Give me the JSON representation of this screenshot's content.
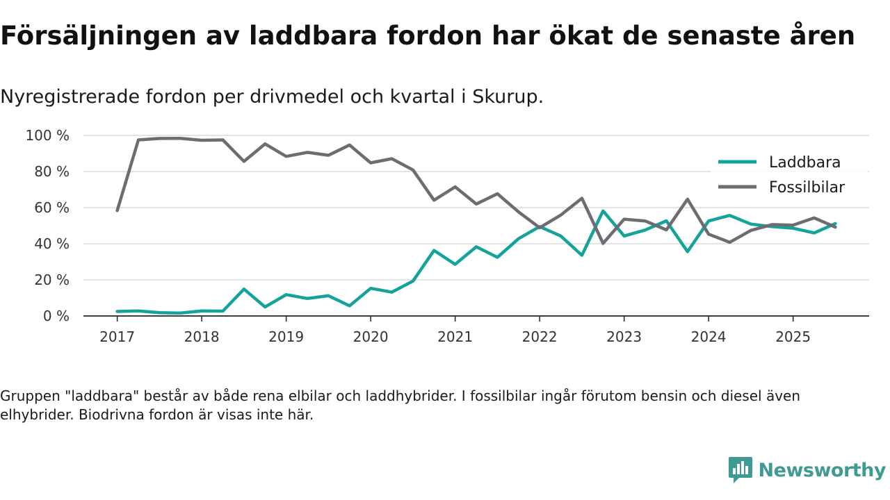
{
  "header": {
    "title": "Försäljningen av laddbara fordon har ökat de senaste åren",
    "subtitle": "Nyregistrerade fordon per drivmedel och kvartal i Skurup."
  },
  "footer": {
    "note": "Gruppen \"laddbara\" består av både rena elbilar och laddhybrider. I fossilbilar ingår förutom bensin och diesel även elhybrider. Biodrivna fordon är visas inte här.",
    "brand": "Newsworthy",
    "brand_icon": "newsworthy-chart-bubble-icon"
  },
  "chart_data": {
    "type": "line",
    "title": "Försäljningen av laddbara fordon har ökat de senaste åren",
    "subtitle": "Nyregistrerade fordon per drivmedel och kvartal i Skurup.",
    "xlabel": "",
    "ylabel": "",
    "x": [
      2017.0,
      2017.25,
      2017.5,
      2017.75,
      2018.0,
      2018.25,
      2018.5,
      2018.75,
      2019.0,
      2019.25,
      2019.5,
      2019.75,
      2020.0,
      2020.25,
      2020.5,
      2020.75,
      2021.0,
      2021.25,
      2021.5,
      2021.75,
      2022.0,
      2022.25,
      2022.5,
      2022.75,
      2023.0,
      2023.25,
      2023.5,
      2023.75,
      2024.0,
      2024.25,
      2024.5,
      2024.75,
      2025.0,
      2025.25,
      2025.5
    ],
    "xlim": [
      2016.6,
      2025.9
    ],
    "xticks": [
      2017,
      2018,
      2019,
      2020,
      2021,
      2022,
      2023,
      2024,
      2025
    ],
    "xtick_labels": [
      "2017",
      "2018",
      "2019",
      "2020",
      "2021",
      "2022",
      "2023",
      "2024",
      "2025"
    ],
    "ylim": [
      0,
      100
    ],
    "yticks": [
      0,
      20,
      40,
      60,
      80,
      100
    ],
    "ytick_labels": [
      "0 %",
      "20 %",
      "40 %",
      "60 %",
      "80 %",
      "100 %"
    ],
    "grid": true,
    "legend_position": "top-right",
    "series": [
      {
        "name": "Laddbara",
        "color": "#13a39a",
        "values": [
          2.5,
          2.8,
          1.8,
          1.6,
          2.8,
          2.7,
          14.9,
          5.0,
          11.8,
          9.7,
          11.2,
          5.6,
          15.3,
          13.2,
          19.3,
          36.3,
          28.6,
          38.3,
          32.5,
          42.8,
          49.5,
          44.3,
          33.6,
          58.2,
          44.3,
          47.6,
          52.7,
          35.6,
          52.6,
          55.7,
          50.9,
          49.5,
          48.6,
          46.0,
          51.2
        ]
      },
      {
        "name": "Fossilbilar",
        "color": "#6e6c73",
        "values": [
          58.4,
          97.5,
          98.3,
          98.4,
          97.3,
          97.5,
          85.6,
          95.3,
          88.4,
          90.6,
          89.0,
          94.7,
          84.8,
          87.1,
          80.9,
          64.1,
          71.5,
          62.0,
          67.7,
          57.6,
          48.9,
          55.9,
          65.2,
          40.2,
          53.6,
          52.6,
          47.7,
          64.7,
          45.3,
          40.8,
          47.4,
          50.6,
          50.3,
          54.3,
          49.2
        ]
      }
    ]
  }
}
